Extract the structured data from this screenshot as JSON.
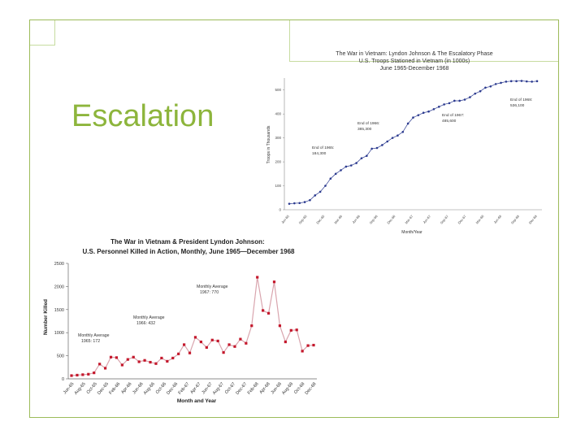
{
  "slide": {
    "title": "Escalation"
  },
  "chart_data": [
    {
      "type": "line",
      "title": "The War in Vietnam: Lyndon Johnson & The Escalatory Phase",
      "subtitle": [
        "U.S. Troops Stationed in Vietnam (in 1000s)",
        "June 1965-December 1968"
      ],
      "xlabel": "Month/Year",
      "ylabel": "Troops in Thousands",
      "ylim": [
        0,
        550
      ],
      "yticks": [
        "0",
        "100",
        "200",
        "300",
        "400",
        "500"
      ],
      "x_tick_labels": [
        "Jun-65",
        "Sep-65",
        "Dec-65",
        "Mar-66",
        "Jun-66",
        "Sep-66",
        "Dec-66",
        "Mar-67",
        "Jun-67",
        "Sep-67",
        "Dec-67",
        "Mar-68",
        "Jun-68",
        "Sep-68",
        "Dec-68"
      ],
      "series": [
        {
          "values": [
            25,
            27,
            28,
            32,
            40,
            60,
            75,
            100,
            130,
            150,
            165,
            180,
            185,
            195,
            215,
            225,
            255,
            258,
            270,
            285,
            300,
            310,
            325,
            360,
            385,
            395,
            405,
            410,
            420,
            430,
            440,
            445,
            455,
            455,
            460,
            470,
            485,
            495,
            510,
            515,
            525,
            530,
            535,
            537,
            537,
            538,
            536,
            535,
            537
          ]
        }
      ],
      "annotations": [
        {
          "text": "End of 1965: 184,300"
        },
        {
          "text": "End of 1966: 385,300"
        },
        {
          "text": "End of 1967: 485,600"
        },
        {
          "text": "End of 1968: 536,100"
        }
      ],
      "grid": false,
      "marker_color": "#2b3a8f"
    },
    {
      "type": "line",
      "title": "The War in Vietnam & President Lyndon Johnson: U.S. Personnel Killed in Action, Monthly, June 1965—December 1968",
      "xlabel": "Month and Year",
      "ylabel": "Number Killed",
      "ylim": [
        0,
        2500
      ],
      "yticks": [
        "0",
        "500",
        "1000",
        "1500",
        "2000",
        "2500"
      ],
      "x_tick_labels": [
        "Jun-65",
        "Aug-65",
        "Oct-65",
        "Dec-65",
        "Feb-66",
        "Apr-66",
        "Jun-66",
        "Aug-66",
        "Oct-66",
        "Dec-66",
        "Feb-67",
        "Apr-67",
        "Jun-67",
        "Aug-67",
        "Oct-67",
        "Dec-67",
        "Feb-68",
        "Apr-68",
        "Jun-68",
        "Aug-68",
        "Oct-68",
        "Dec-68"
      ],
      "series": [
        {
          "values": [
            70,
            80,
            90,
            100,
            130,
            320,
            230,
            470,
            460,
            300,
            420,
            470,
            370,
            400,
            360,
            330,
            450,
            380,
            450,
            540,
            740,
            560,
            900,
            800,
            680,
            840,
            820,
            570,
            740,
            700,
            860,
            770,
            1150,
            2200,
            1480,
            1420,
            2100,
            1150,
            800,
            1050,
            1060,
            600,
            720,
            730
          ]
        }
      ],
      "annotations": [
        {
          "text": "Monthly Average 1965: 172"
        },
        {
          "text": "Monthly Average 1966: 432"
        },
        {
          "text": "Monthly Average 1967: 770"
        }
      ],
      "grid": false,
      "line_color": "#d9a5ae",
      "marker_color": "#c4182c"
    }
  ]
}
